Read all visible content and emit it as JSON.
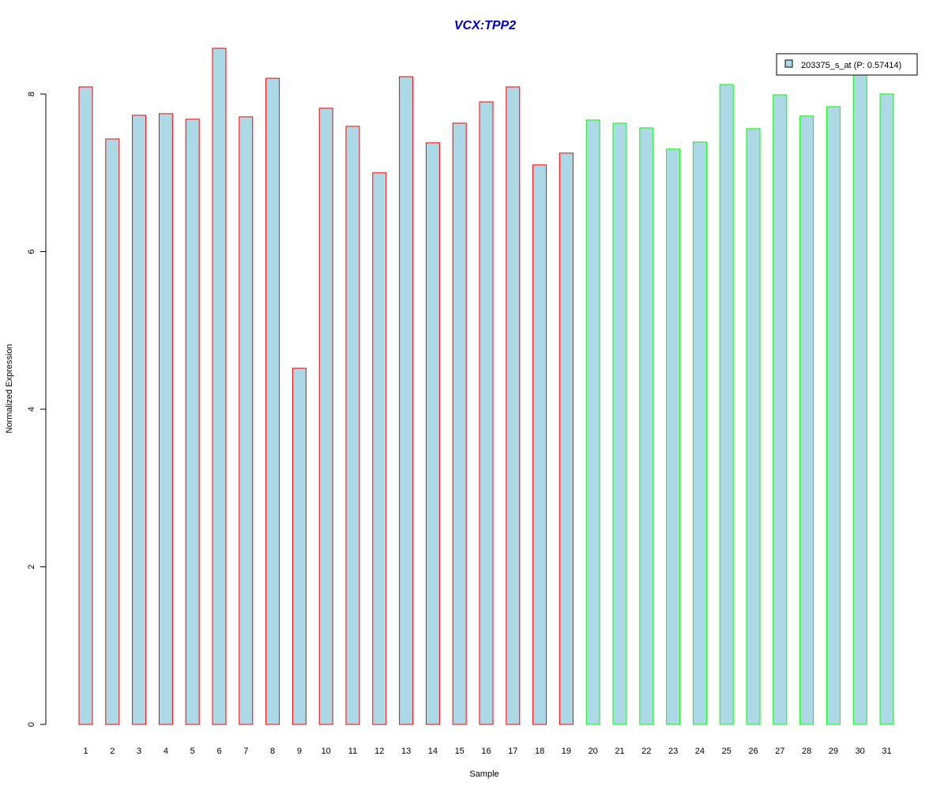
{
  "chart_data": {
    "type": "bar",
    "title": "VCX:TPP2",
    "xlabel": "Sample",
    "ylabel": "Normalized Expression",
    "categories": [
      "1",
      "2",
      "3",
      "4",
      "5",
      "6",
      "7",
      "8",
      "9",
      "10",
      "11",
      "12",
      "13",
      "14",
      "15",
      "16",
      "17",
      "18",
      "19",
      "20",
      "21",
      "22",
      "23",
      "24",
      "25",
      "26",
      "27",
      "28",
      "29",
      "30",
      "31"
    ],
    "values": [
      8.09,
      7.43,
      7.73,
      7.75,
      7.68,
      8.58,
      7.71,
      8.2,
      4.52,
      7.82,
      7.59,
      7.0,
      8.22,
      7.38,
      7.63,
      7.9,
      8.09,
      7.1,
      7.25,
      7.67,
      7.63,
      7.57,
      7.3,
      7.39,
      8.12,
      7.56,
      7.99,
      7.72,
      7.84,
      8.27,
      8.0
    ],
    "groups": [
      "red",
      "red",
      "red",
      "red",
      "red",
      "red",
      "red",
      "red",
      "red",
      "red",
      "red",
      "red",
      "red",
      "red",
      "red",
      "red",
      "red",
      "red",
      "red",
      "green",
      "green",
      "green",
      "green",
      "green",
      "green",
      "green",
      "green",
      "green",
      "green",
      "green",
      "green"
    ],
    "ylim": [
      0,
      8.6
    ],
    "yticks": [
      "0",
      "2",
      "4",
      "6",
      "8"
    ],
    "grid": false,
    "legend": {
      "placement": "top-right",
      "entries": [
        "203375_s_at (P: 0.57414)"
      ]
    },
    "colors": {
      "bar_fill": "#add8e6",
      "group_red": "#ff0000",
      "group_green": "#00ff00",
      "title": "#0000cc",
      "axis": "#000000"
    }
  }
}
